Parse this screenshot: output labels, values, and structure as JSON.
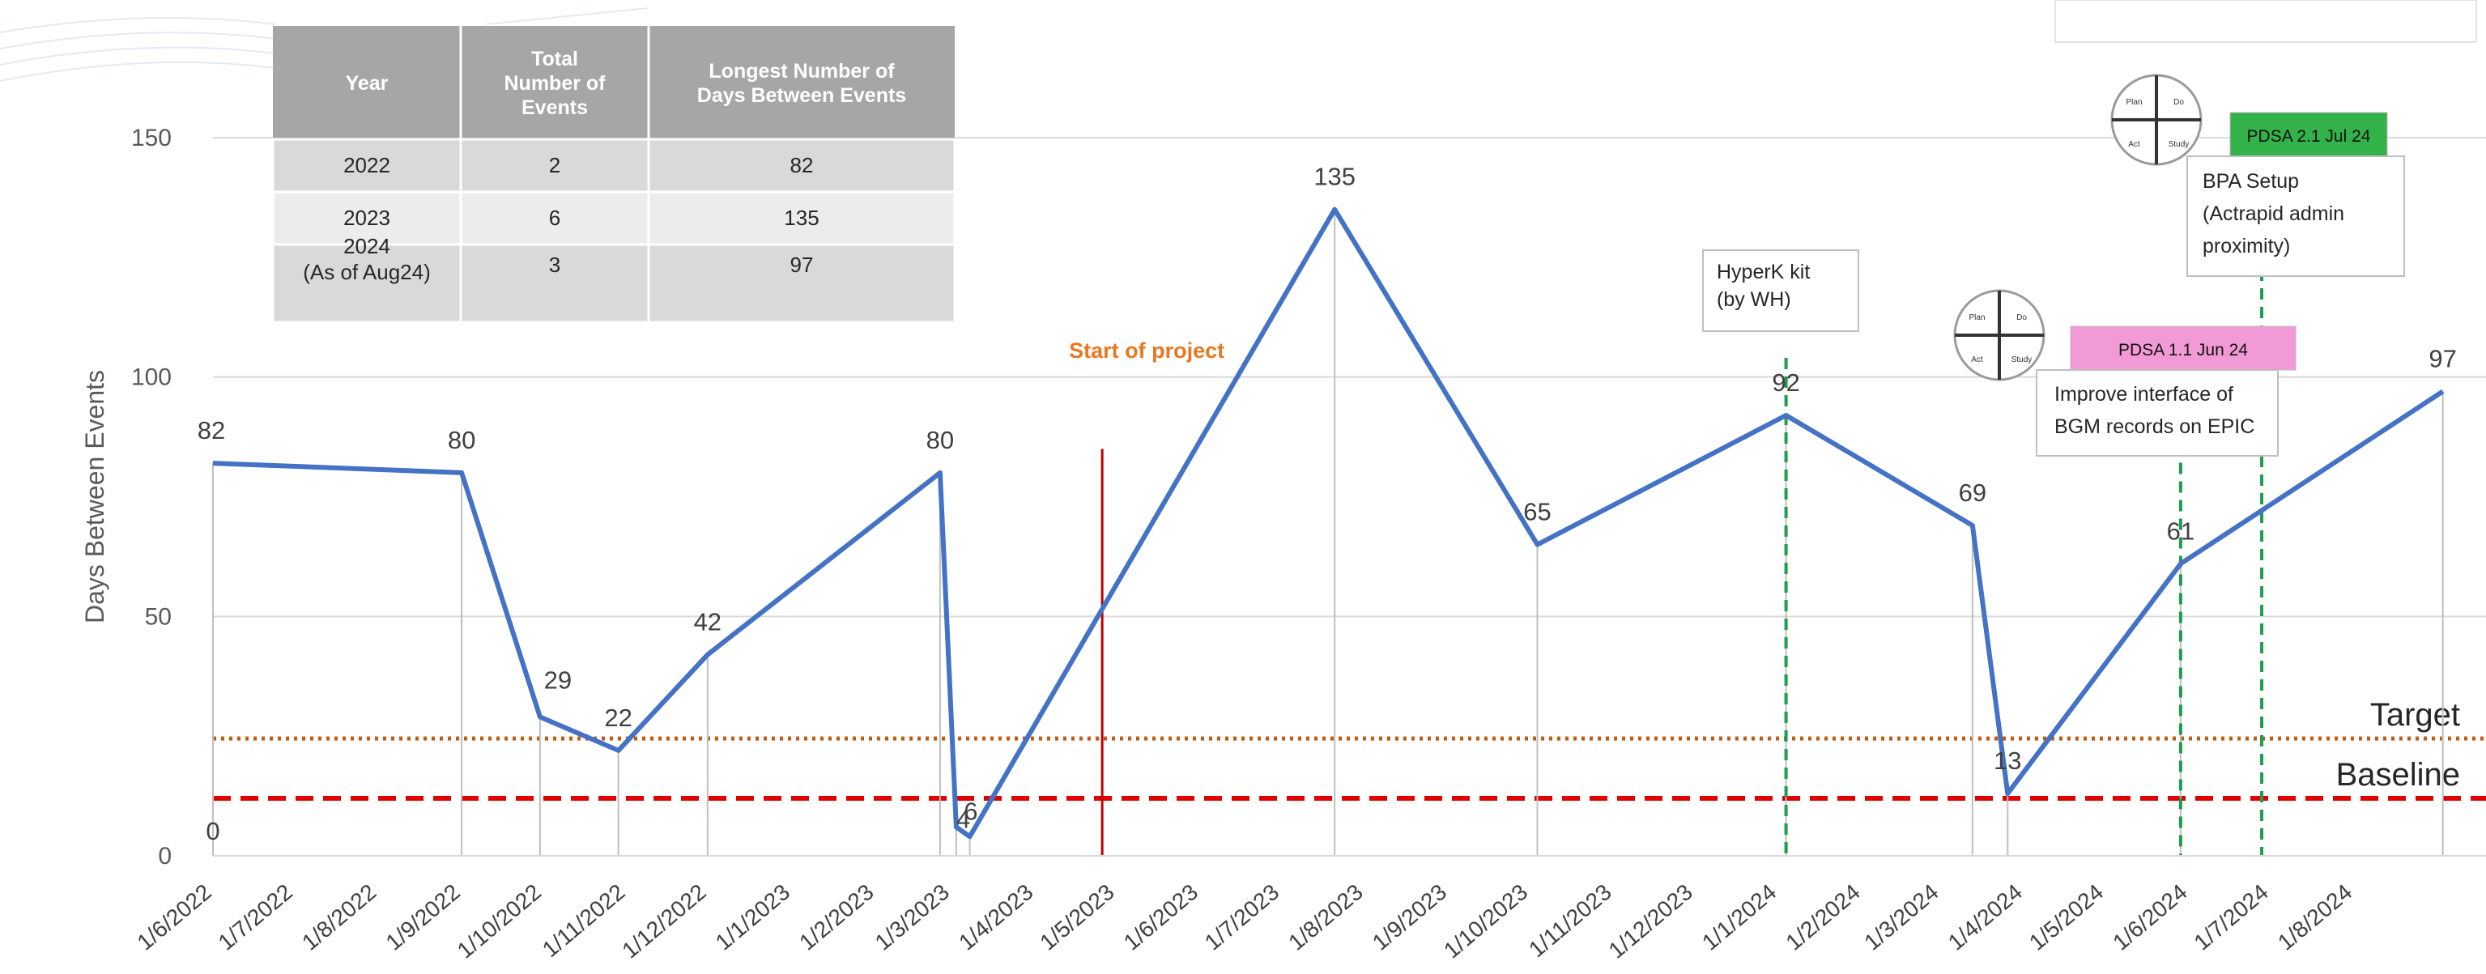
{
  "chart_data": {
    "type": "line",
    "ylabel": "Days Between Events",
    "ylim": [
      0,
      150
    ],
    "yticks": [
      0,
      50,
      100,
      150
    ],
    "x_ticks": [
      "1/6/2022",
      "1/7/2022",
      "1/8/2022",
      "1/9/2022",
      "1/10/2022",
      "1/11/2022",
      "1/12/2022",
      "1/1/2023",
      "1/2/2023",
      "1/3/2023",
      "1/4/2023",
      "1/5/2023",
      "1/6/2023",
      "1/7/2023",
      "1/8/2023",
      "1/9/2023",
      "1/10/2023",
      "1/11/2023",
      "1/12/2023",
      "1/1/2024",
      "1/2/2024",
      "1/3/2024",
      "1/4/2024",
      "1/5/2024",
      "1/6/2024",
      "1/7/2024",
      "1/8/2024"
    ],
    "series": [
      {
        "color": "#4472C4",
        "points": [
          {
            "x": "2022-06-01",
            "y": 82,
            "label": "82"
          },
          {
            "x": "2022-09-01",
            "y": 80,
            "label": "80"
          },
          {
            "x": "2022-09-30",
            "y": 29,
            "label": "29"
          },
          {
            "x": "2022-10-29",
            "y": 22,
            "label": "22"
          },
          {
            "x": "2022-12-01",
            "y": 42,
            "label": "42"
          },
          {
            "x": "2023-02-25",
            "y": 80,
            "label": "80"
          },
          {
            "x": "2023-03-03",
            "y": 6,
            "label": "6"
          },
          {
            "x": "2023-03-08",
            "y": 4,
            "label": "4"
          },
          {
            "x": "2023-07-21",
            "y": 135,
            "label": "135"
          },
          {
            "x": "2023-10-04",
            "y": 65,
            "label": "65"
          },
          {
            "x": "2024-01-04",
            "y": 92,
            "label": "92"
          },
          {
            "x": "2024-03-13",
            "y": 69,
            "label": "69"
          },
          {
            "x": "2024-03-26",
            "y": 13,
            "label": "13"
          },
          {
            "x": "2024-05-29",
            "y": 61,
            "label": "61"
          },
          {
            "x": "2024-09-03",
            "y": 97,
            "label": "97"
          }
        ]
      }
    ],
    "extra_labels": [
      {
        "x": "2022-06-01",
        "y": 0,
        "label": "0"
      }
    ],
    "reference_lines": [
      {
        "name": "Target",
        "y": 24.5,
        "color": "#C55A11",
        "style": "dotted"
      },
      {
        "name": "Baseline",
        "y": 12,
        "color": "#E00000",
        "style": "dashed"
      }
    ],
    "start_marker": {
      "x": "2023-04-26",
      "label": "Start of project",
      "color": "#C00000"
    },
    "intervention_lines": [
      {
        "x": "2024-01-04",
        "color": "#1E9E4E"
      },
      {
        "x": "2024-05-29",
        "color": "#1E9E4E"
      },
      {
        "x": "2024-06-28",
        "color": "#1E9E4E"
      }
    ],
    "grid": "horizontal"
  },
  "annotations": {
    "hyperk": [
      "HyperK kit",
      "(by WH)"
    ],
    "pdsa1": {
      "tag": "PDSA 1.1 Jun 24",
      "tag_color": "#F29AD6",
      "text": [
        "Improve interface of",
        "BGM records on EPIC"
      ]
    },
    "pdsa2": {
      "tag": "PDSA 2.1 Jul 24",
      "tag_color": "#33B24A",
      "text": [
        "BPA Setup",
        "(Actrapid admin",
        "proximity)"
      ]
    },
    "cycle_labels": [
      "Plan",
      "Do",
      "Act",
      "Study"
    ]
  },
  "summary_table": {
    "header": [
      "Year",
      "Total Number of Events",
      "Longest Number of Days Between Events"
    ],
    "header_lines": [
      [
        "Year"
      ],
      [
        "Total",
        "Number of",
        "Events"
      ],
      [
        "Longest Number of",
        "Days Between Events"
      ]
    ],
    "rows": [
      {
        "year": [
          "2022"
        ],
        "events": "2",
        "longest": "82"
      },
      {
        "year": [
          "2023"
        ],
        "events": "6",
        "longest": "135"
      },
      {
        "year": [
          "2024",
          "(As of Aug24)"
        ],
        "events": "3",
        "longest": "97"
      }
    ],
    "header_color": "#A6A6A6"
  }
}
